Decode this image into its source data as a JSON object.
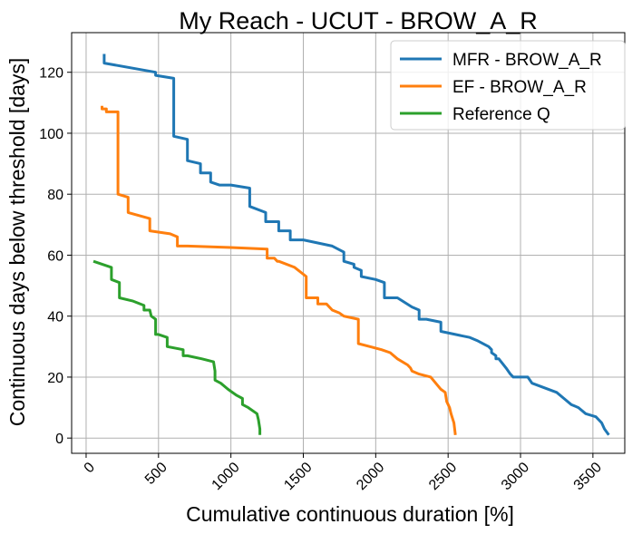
{
  "chart_data": {
    "type": "line",
    "title": "My Reach - UCUT - BROW_A_R",
    "xlabel": "Cumulative continuous duration [%]",
    "ylabel": "Continuous days below threshold [days]",
    "xlim": [
      -100,
      3720
    ],
    "ylim": [
      -5,
      133
    ],
    "xticks": [
      0,
      500,
      1000,
      1500,
      2000,
      2500,
      3000,
      3500
    ],
    "yticks": [
      0,
      20,
      40,
      60,
      80,
      100,
      120
    ],
    "xtick_labels": [
      "0",
      "500",
      "1000",
      "1500",
      "2000",
      "2500",
      "3000",
      "3500"
    ],
    "ytick_labels": [
      "0",
      "20",
      "40",
      "60",
      "80",
      "100",
      "120"
    ],
    "grid": true,
    "legend_position": "top-right",
    "series": [
      {
        "name": "MFR - BROW_A_R",
        "color": "#1f77b4",
        "points": [
          [
            125,
            126
          ],
          [
            125,
            123
          ],
          [
            480,
            120
          ],
          [
            480,
            119
          ],
          [
            605,
            118
          ],
          [
            605,
            99
          ],
          [
            700,
            98
          ],
          [
            700,
            91
          ],
          [
            790,
            90
          ],
          [
            790,
            87
          ],
          [
            860,
            87
          ],
          [
            860,
            84
          ],
          [
            920,
            83
          ],
          [
            1000,
            83
          ],
          [
            1130,
            82
          ],
          [
            1130,
            76
          ],
          [
            1240,
            74
          ],
          [
            1240,
            71
          ],
          [
            1330,
            71
          ],
          [
            1330,
            68
          ],
          [
            1410,
            68
          ],
          [
            1410,
            65
          ],
          [
            1500,
            65
          ],
          [
            1600,
            64
          ],
          [
            1700,
            63
          ],
          [
            1780,
            61
          ],
          [
            1780,
            58
          ],
          [
            1850,
            57
          ],
          [
            1850,
            56
          ],
          [
            1900,
            55
          ],
          [
            1900,
            53
          ],
          [
            2000,
            52
          ],
          [
            2060,
            51
          ],
          [
            2060,
            46
          ],
          [
            2150,
            46
          ],
          [
            2250,
            43
          ],
          [
            2300,
            42
          ],
          [
            2300,
            39
          ],
          [
            2350,
            39
          ],
          [
            2450,
            38
          ],
          [
            2450,
            35
          ],
          [
            2550,
            34
          ],
          [
            2650,
            33
          ],
          [
            2700,
            32
          ],
          [
            2780,
            30
          ],
          [
            2800,
            29
          ],
          [
            2800,
            28
          ],
          [
            2830,
            27
          ],
          [
            2830,
            26
          ],
          [
            2850,
            26
          ],
          [
            2900,
            23
          ],
          [
            2930,
            21
          ],
          [
            2950,
            20
          ],
          [
            3050,
            20
          ],
          [
            3080,
            18
          ],
          [
            3250,
            15
          ],
          [
            3300,
            13
          ],
          [
            3350,
            11
          ],
          [
            3400,
            10
          ],
          [
            3450,
            8
          ],
          [
            3520,
            7
          ],
          [
            3560,
            5
          ],
          [
            3580,
            3
          ],
          [
            3610,
            1
          ]
        ]
      },
      {
        "name": "EF - BROW_A_R",
        "color": "#ff7f0e",
        "points": [
          [
            110,
            109
          ],
          [
            110,
            108
          ],
          [
            140,
            108
          ],
          [
            140,
            107
          ],
          [
            220,
            107
          ],
          [
            220,
            80
          ],
          [
            290,
            79
          ],
          [
            290,
            74
          ],
          [
            440,
            72
          ],
          [
            440,
            68
          ],
          [
            580,
            67
          ],
          [
            630,
            66
          ],
          [
            630,
            63
          ],
          [
            700,
            63
          ],
          [
            1000,
            62.5
          ],
          [
            1250,
            62
          ],
          [
            1250,
            59
          ],
          [
            1300,
            59
          ],
          [
            1320,
            58
          ],
          [
            1330,
            58
          ],
          [
            1440,
            56
          ],
          [
            1520,
            53
          ],
          [
            1520,
            46
          ],
          [
            1600,
            46
          ],
          [
            1600,
            44
          ],
          [
            1660,
            44
          ],
          [
            1700,
            42
          ],
          [
            1750,
            41
          ],
          [
            1780,
            40
          ],
          [
            1880,
            39
          ],
          [
            1880,
            31
          ],
          [
            1960,
            30
          ],
          [
            2040,
            29
          ],
          [
            2100,
            28
          ],
          [
            2150,
            26
          ],
          [
            2220,
            24
          ],
          [
            2240,
            23
          ],
          [
            2250,
            22
          ],
          [
            2300,
            21
          ],
          [
            2380,
            20
          ],
          [
            2450,
            16
          ],
          [
            2480,
            15
          ],
          [
            2490,
            12
          ],
          [
            2500,
            11
          ],
          [
            2510,
            10
          ],
          [
            2520,
            8
          ],
          [
            2540,
            5
          ],
          [
            2550,
            1
          ]
        ]
      },
      {
        "name": "Reference Q",
        "color": "#2ca02c",
        "points": [
          [
            50,
            58
          ],
          [
            175,
            56
          ],
          [
            175,
            52
          ],
          [
            230,
            51
          ],
          [
            230,
            46
          ],
          [
            320,
            45
          ],
          [
            400,
            43.5
          ],
          [
            400,
            42
          ],
          [
            440,
            42
          ],
          [
            450,
            40
          ],
          [
            480,
            39
          ],
          [
            480,
            34
          ],
          [
            500,
            34
          ],
          [
            560,
            33
          ],
          [
            560,
            30
          ],
          [
            670,
            29
          ],
          [
            670,
            27
          ],
          [
            700,
            27
          ],
          [
            800,
            26
          ],
          [
            880,
            25
          ],
          [
            890,
            22
          ],
          [
            890,
            19
          ],
          [
            930,
            18
          ],
          [
            980,
            16
          ],
          [
            1040,
            14
          ],
          [
            1080,
            13
          ],
          [
            1080,
            11
          ],
          [
            1120,
            10
          ],
          [
            1180,
            8
          ],
          [
            1190,
            6
          ],
          [
            1200,
            3
          ],
          [
            1200,
            1
          ]
        ]
      }
    ]
  }
}
